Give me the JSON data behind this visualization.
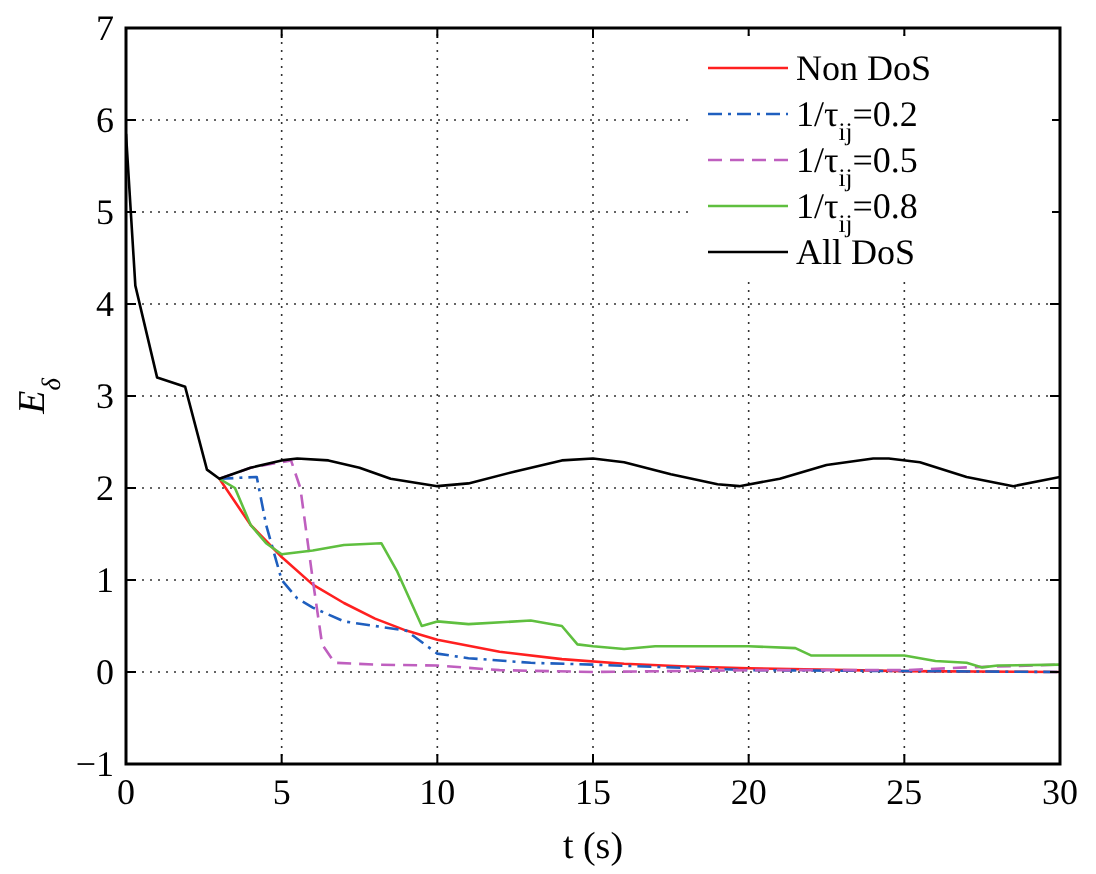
{
  "chart_data": {
    "type": "line",
    "xlabel": "t (s)",
    "ylabel": "E$_{δ}$",
    "xlim": [
      0,
      30
    ],
    "ylim": [
      -1,
      7
    ],
    "xticks": [
      0,
      5,
      10,
      15,
      20,
      25,
      30
    ],
    "yticks": [
      -1,
      0,
      1,
      2,
      3,
      4,
      5,
      6,
      7
    ],
    "grid": true,
    "legend": "top right",
    "series": [
      {
        "name": "Non DoS",
        "color": "#ff2020",
        "line_style": "solid",
        "x": [
          3,
          4,
          5,
          6,
          7,
          8,
          9,
          10,
          12,
          14,
          16,
          18,
          20,
          25,
          30
        ],
        "values": [
          2.1,
          1.6,
          1.25,
          0.95,
          0.75,
          0.58,
          0.45,
          0.35,
          0.22,
          0.14,
          0.09,
          0.06,
          0.04,
          0.01,
          0
        ]
      },
      {
        "name": "1/τ$_{ij}$=0.2",
        "color": "#1f5fbf",
        "line_style": "dashdot",
        "x": [
          3,
          4.2,
          4.5,
          5,
          5.5,
          6,
          7,
          8,
          9,
          10,
          11,
          13,
          15,
          20,
          30
        ],
        "values": [
          2.1,
          2.12,
          1.6,
          1.0,
          0.8,
          0.7,
          0.55,
          0.5,
          0.45,
          0.2,
          0.15,
          0.1,
          0.08,
          0.02,
          0
        ]
      },
      {
        "name": "1/τ$_{ij}$=0.5",
        "color": "#bf5fbf",
        "line_style": "dashed",
        "x": [
          3,
          4,
          5.3,
          5.6,
          6,
          6.3,
          6.7,
          8,
          10,
          12,
          15,
          20,
          25,
          27,
          30
        ],
        "values": [
          2.1,
          2.22,
          2.3,
          2.0,
          1.0,
          0.3,
          0.1,
          0.08,
          0.07,
          0.02,
          0,
          0.02,
          0.02,
          0.05,
          0.08
        ]
      },
      {
        "name": "1/τ$_{ij}$=0.8",
        "color": "#5fbf3f",
        "line_style": "solid",
        "x": [
          3,
          3.5,
          4,
          4.5,
          5,
          6,
          7,
          8.2,
          8.7,
          9.5,
          10,
          11,
          13,
          14,
          14.5,
          15,
          16,
          17,
          20,
          21.5,
          22,
          25,
          26,
          27,
          27.5,
          28,
          30
        ],
        "values": [
          2.1,
          2.0,
          1.6,
          1.4,
          1.28,
          1.32,
          1.38,
          1.4,
          1.1,
          0.5,
          0.55,
          0.52,
          0.56,
          0.5,
          0.3,
          0.28,
          0.25,
          0.28,
          0.28,
          0.26,
          0.18,
          0.18,
          0.12,
          0.1,
          0.05,
          0.07,
          0.08
        ]
      },
      {
        "name": "All DoS",
        "color": "#000000",
        "line_style": "solid",
        "x": [
          0,
          0.3,
          1,
          1.9,
          2.6,
          3,
          4,
          5,
          5.5,
          6.5,
          7.5,
          8.5,
          10,
          11,
          12.5,
          14,
          15,
          16,
          17.5,
          19,
          19.7,
          21,
          22.5,
          24,
          24.5,
          25.5,
          27,
          28.5,
          30
        ],
        "values": [
          5.85,
          4.2,
          3.2,
          3.1,
          2.2,
          2.1,
          2.22,
          2.3,
          2.32,
          2.3,
          2.22,
          2.1,
          2.02,
          2.05,
          2.18,
          2.3,
          2.32,
          2.28,
          2.15,
          2.04,
          2.02,
          2.1,
          2.25,
          2.32,
          2.32,
          2.28,
          2.12,
          2.02,
          2.12
        ]
      }
    ]
  }
}
